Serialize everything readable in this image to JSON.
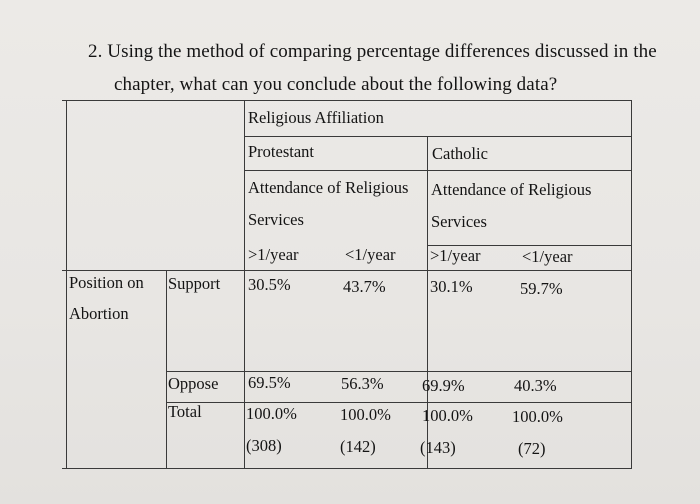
{
  "question": {
    "line1": "2. Using the method of comparing percentage differences discussed in the",
    "line2": "chapter, what can you conclude about the following data?"
  },
  "table": {
    "header_top": "Religious Affiliation",
    "groups": [
      "Protestant",
      "Catholic"
    ],
    "sub_header_line1": [
      "Attendance of Religious",
      "Attendance of Religious"
    ],
    "sub_header_line2": [
      "Services",
      "Services"
    ],
    "columns": [
      ">1/year",
      "<1/year",
      ">1/year",
      "<1/year"
    ],
    "row_group": {
      "line1": "Position on",
      "line2": "Abortion"
    },
    "rows": [
      {
        "label": "Support",
        "values": [
          "30.5%",
          "43.7%",
          "30.1%",
          "59.7%"
        ]
      },
      {
        "label": "Oppose",
        "values": [
          "69.5%",
          "56.3%",
          "69.9%",
          "40.3%"
        ]
      },
      {
        "label": "Total",
        "values": [
          "100.0%",
          "100.0%",
          "100.0%",
          "100.0%"
        ],
        "counts": [
          "(308)",
          "(142)",
          "(143)",
          "(72)"
        ]
      }
    ]
  }
}
